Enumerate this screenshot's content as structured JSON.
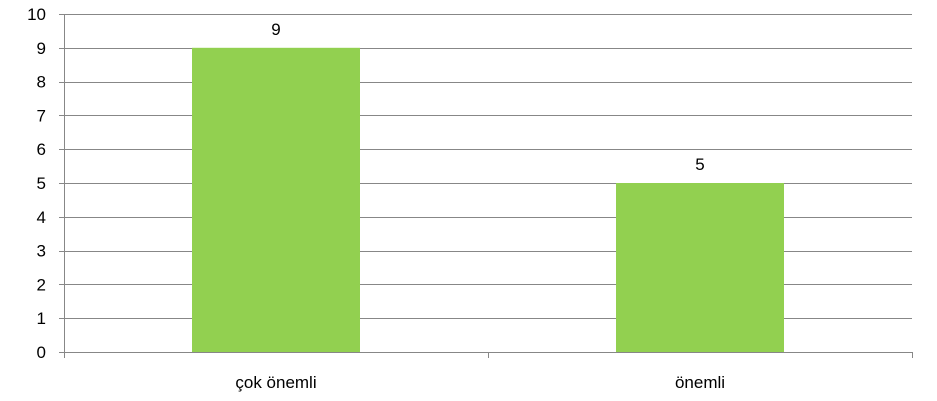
{
  "chart_data": {
    "type": "bar",
    "categories": [
      "çok önemli",
      "önemli"
    ],
    "values": [
      9,
      5
    ],
    "data_labels": [
      "9",
      "5"
    ],
    "title": "",
    "xlabel": "",
    "ylabel": "",
    "ylim": [
      0,
      10
    ],
    "yticks": [
      "0",
      "1",
      "2",
      "3",
      "4",
      "5",
      "6",
      "7",
      "8",
      "9",
      "10"
    ],
    "grid": true,
    "legend": "none",
    "bar_color": "#92d050",
    "grid_color": "#878787",
    "axis_color": "#878787"
  }
}
